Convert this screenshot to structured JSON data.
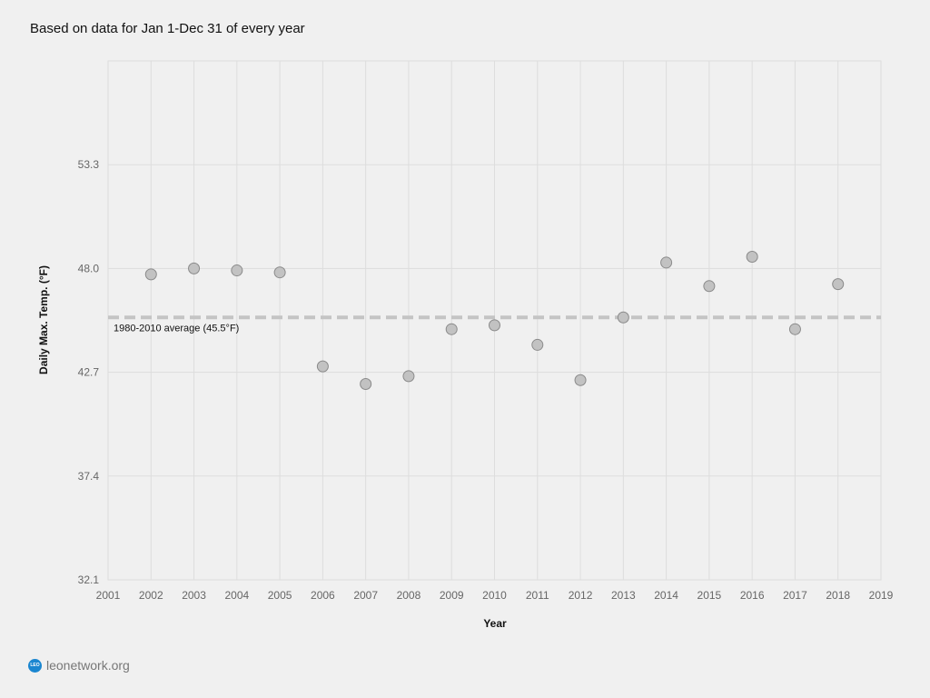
{
  "subtitle": "Based on data for Jan 1-Dec 31 of every year",
  "footer": {
    "logo_text": "LEO",
    "site": "leonetwork.org"
  },
  "colors": {
    "point_fill": "#c2c2c2",
    "point_stroke": "#8a8a8a",
    "avg_line": "#c4c4c4",
    "grid": "#dddddd",
    "logo": "#1a86d0"
  },
  "chart_data": {
    "type": "scatter",
    "title": "Based on data for Jan 1-Dec 31 of every year",
    "xlabel": "Year",
    "ylabel": "Daily Max. Temp. (°F)",
    "xlim": [
      2001,
      2019
    ],
    "ylim": [
      32.1,
      58.6
    ],
    "xticks": [
      "2001",
      "2002",
      "2003",
      "2004",
      "2005",
      "2006",
      "2007",
      "2008",
      "2009",
      "2010",
      "2011",
      "2012",
      "2013",
      "2014",
      "2015",
      "2016",
      "2017",
      "2018",
      "2019"
    ],
    "yticks": [
      "32.1",
      "37.4",
      "42.7",
      "48.0",
      "53.3"
    ],
    "ytick_values": [
      32.1,
      37.4,
      42.7,
      48.0,
      53.3
    ],
    "ygrid_values": [
      32.1,
      37.4,
      42.7,
      48.0,
      53.3,
      58.6
    ],
    "grid": true,
    "x": [
      2002,
      2003,
      2004,
      2005,
      2006,
      2007,
      2008,
      2009,
      2010,
      2011,
      2012,
      2013,
      2014,
      2015,
      2016,
      2017,
      2018
    ],
    "y": [
      47.7,
      48.0,
      47.9,
      47.8,
      43.0,
      42.1,
      42.5,
      44.9,
      45.1,
      44.1,
      42.3,
      45.5,
      48.3,
      47.1,
      48.6,
      44.9,
      47.2
    ],
    "reference_line": {
      "value": 45.5,
      "label": "1980-2010 average (45.5°F)"
    }
  }
}
